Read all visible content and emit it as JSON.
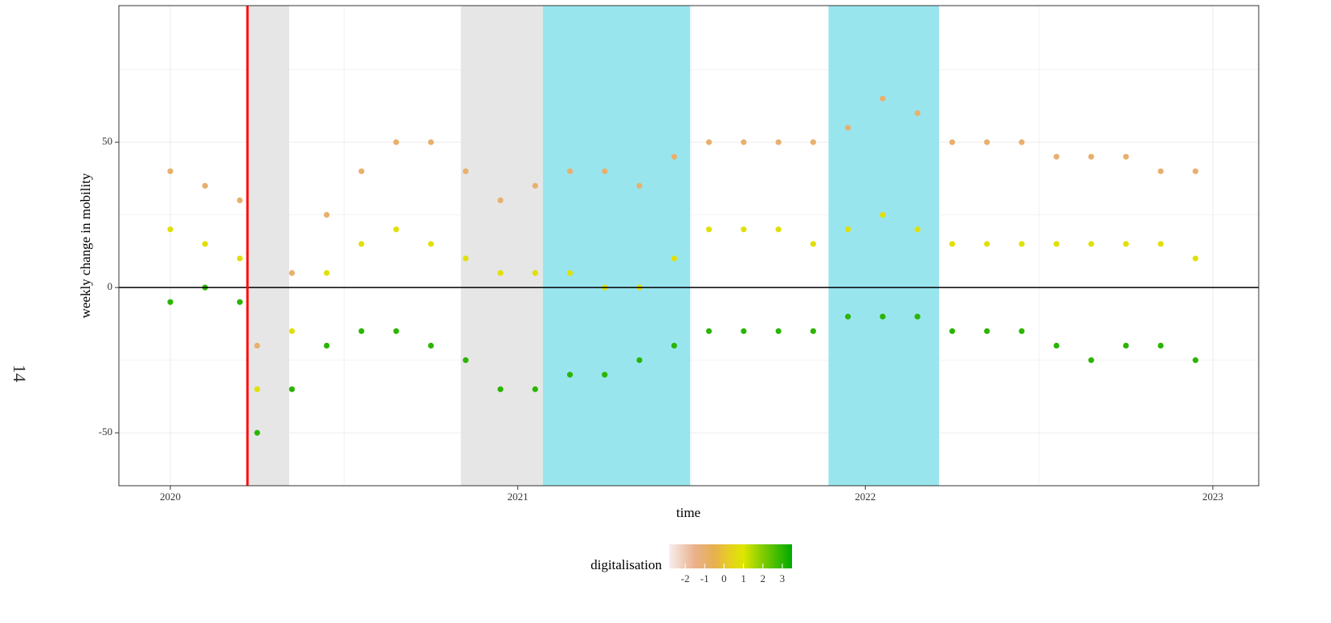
{
  "chart_data": {
    "type": "scatter",
    "page_number": "14",
    "xlabel": "time",
    "ylabel": "weekly change in mobility",
    "xlim": [
      2019.852,
      2023.132
    ],
    "ylim": [
      -68.2,
      97
    ],
    "xticks": [
      2020,
      2021,
      2022,
      2023
    ],
    "yticks": [
      -50,
      0,
      50
    ],
    "xminor": [
      2020.5,
      2021.5,
      2022.5
    ],
    "yminor": [
      -25,
      25,
      75
    ],
    "grid": true,
    "bands": [
      {
        "xlim": [
          2020.226,
          2020.342
        ],
        "color": "#e6e6e6"
      },
      {
        "xlim": [
          2020.836,
          2021.072
        ],
        "color": "#e6e6e6"
      },
      {
        "xlim": [
          2021.072,
          2021.496
        ],
        "color": "#99e5ee"
      },
      {
        "xlim": [
          2021.894,
          2022.212
        ],
        "color": "#99e5ee"
      }
    ],
    "vline": {
      "x": 2020.222,
      "color": "#ff0000"
    },
    "hline": {
      "y": 0,
      "color": "#000000"
    },
    "points": {
      "x": [
        2020.0,
        2020.0,
        2020.0,
        2020.1,
        2020.1,
        2020.1,
        2020.2,
        2020.2,
        2020.2,
        2020.25,
        2020.25,
        2020.25,
        2020.35,
        2020.35,
        2020.35,
        2020.45,
        2020.45,
        2020.45,
        2020.55,
        2020.55,
        2020.55,
        2020.65,
        2020.65,
        2020.65,
        2020.75,
        2020.75,
        2020.75,
        2020.85,
        2020.85,
        2020.85,
        2020.95,
        2020.95,
        2020.95,
        2021.05,
        2021.05,
        2021.05,
        2021.15,
        2021.15,
        2021.15,
        2021.25,
        2021.25,
        2021.25,
        2021.35,
        2021.35,
        2021.35,
        2021.45,
        2021.45,
        2021.45,
        2021.55,
        2021.55,
        2021.55,
        2021.65,
        2021.65,
        2021.65,
        2021.75,
        2021.75,
        2021.75,
        2021.85,
        2021.85,
        2021.85,
        2021.95,
        2021.95,
        2021.95,
        2022.05,
        2022.05,
        2022.05,
        2022.15,
        2022.15,
        2022.15,
        2022.25,
        2022.25,
        2022.25,
        2022.35,
        2022.35,
        2022.35,
        2022.45,
        2022.45,
        2022.45,
        2022.55,
        2022.55,
        2022.55,
        2022.65,
        2022.65,
        2022.65,
        2022.75,
        2022.75,
        2022.75,
        2022.85,
        2022.85,
        2022.85,
        2022.95,
        2022.95,
        2022.95
      ],
      "y": [
        40,
        20,
        -5,
        35,
        15,
        0,
        30,
        10,
        -5,
        -20,
        -35,
        -50,
        5,
        -15,
        -35,
        25,
        5,
        -20,
        40,
        15,
        -15,
        50,
        20,
        -15,
        50,
        15,
        -20,
        40,
        10,
        -25,
        30,
        5,
        -35,
        35,
        5,
        -35,
        40,
        5,
        -30,
        40,
        0,
        -30,
        35,
        0,
        -25,
        45,
        10,
        -20,
        50,
        20,
        -15,
        50,
        20,
        -15,
        50,
        20,
        -15,
        50,
        15,
        -15,
        55,
        20,
        -10,
        65,
        25,
        -10,
        60,
        20,
        -10,
        50,
        15,
        -15,
        50,
        15,
        -15,
        50,
        15,
        -15,
        45,
        15,
        -20,
        45,
        15,
        -25,
        45,
        15,
        -20,
        40,
        15,
        -20,
        40,
        10,
        -25
      ],
      "digitalisation": [
        -1,
        0.8,
        3,
        -1,
        0.8,
        3,
        -1,
        0.8,
        3,
        -1,
        0.8,
        3,
        -1,
        0.8,
        3,
        -1,
        0.8,
        3,
        -1,
        0.8,
        3,
        -1,
        0.8,
        3,
        -1,
        0.8,
        3,
        -1,
        0.8,
        3,
        -1,
        0.8,
        3,
        -1,
        0.8,
        3,
        -1,
        0.8,
        3,
        -1,
        0.8,
        3,
        -1,
        0.8,
        3,
        -1,
        0.8,
        3,
        -1,
        0.8,
        3,
        -1,
        0.8,
        3,
        -1,
        0.8,
        3,
        -1,
        0.8,
        3,
        -1,
        0.8,
        3,
        -1,
        0.8,
        3,
        -1,
        0.8,
        3,
        -1,
        0.8,
        3,
        -1,
        0.8,
        3,
        -1,
        0.8,
        3,
        -1,
        0.8,
        3,
        -1,
        0.8,
        3,
        -1,
        0.8,
        3,
        -1,
        0.8,
        3,
        -1,
        0.8,
        3
      ]
    },
    "colorbar": {
      "title": "digitalisation",
      "clim": [
        -2.83,
        3.5
      ],
      "ticks": [
        -2,
        -1,
        0,
        1,
        2,
        3
      ],
      "stops": [
        {
          "value": -2.83,
          "color": "#f7eeee"
        },
        {
          "value": -1.5,
          "color": "#eab08a"
        },
        {
          "value": -0.5,
          "color": "#e6b050"
        },
        {
          "value": 0.3,
          "color": "#e6d020"
        },
        {
          "value": 1,
          "color": "#dde600"
        },
        {
          "value": 2,
          "color": "#80cc00"
        },
        {
          "value": 3.5,
          "color": "#00aa00"
        }
      ]
    }
  }
}
